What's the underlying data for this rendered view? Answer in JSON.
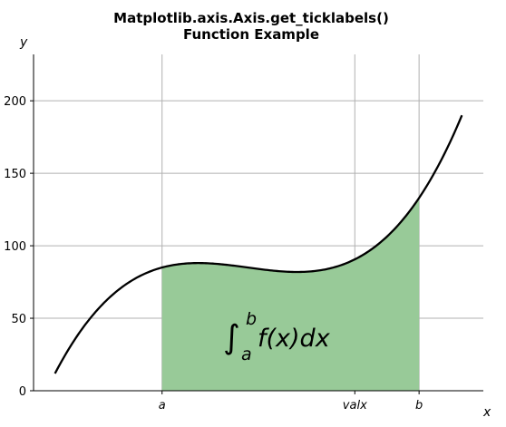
{
  "chart_data": {
    "type": "area",
    "title_lines": [
      "Matplotlib.axis.Axis.get_ticklabels()",
      "Function Example"
    ],
    "xlabel": "x",
    "ylabel": "y",
    "function": "(x - 3) * (x - 5) * (x - 7) + 85",
    "curve_x_range": [
      0.5,
      10
    ],
    "xlim": [
      0,
      10.5
    ],
    "ylim": [
      0,
      232
    ],
    "shaded_interval": [
      3,
      9
    ],
    "shade_color": "#98ca98",
    "curve_color": "#000000",
    "grid": true,
    "grid_color": "#b0b0b0",
    "x_ticks": [
      {
        "value": 3,
        "label": "a"
      },
      {
        "value": 7.5,
        "label": "valx"
      },
      {
        "value": 9,
        "label": "b"
      }
    ],
    "y_ticks": [
      {
        "value": 0,
        "label": "0"
      },
      {
        "value": 50,
        "label": "50"
      },
      {
        "value": 100,
        "label": "100"
      },
      {
        "value": 150,
        "label": "150"
      },
      {
        "value": 200,
        "label": "200"
      }
    ],
    "annotation": {
      "integral_sign": "∫",
      "lower_limit": "a",
      "upper_limit": "b",
      "expression": "f(x)dx",
      "x": 6,
      "y": 30
    }
  }
}
